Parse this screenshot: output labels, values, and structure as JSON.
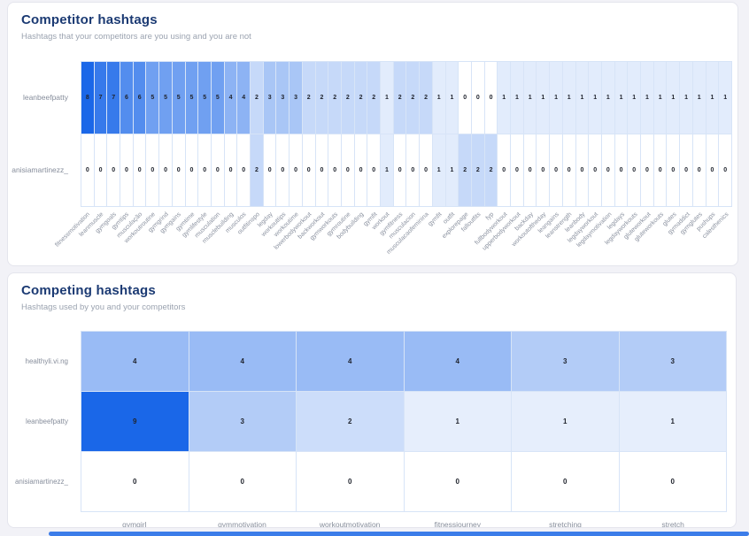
{
  "page": {
    "background_color": "#f2f2f7",
    "accent_color": "#1a67e8",
    "scrollbar_color": "#3c7de9"
  },
  "chart_data": [
    {
      "type": "heatmap",
      "title": "Competitor hashtags",
      "subtitle": "Hashtags that your competitors are you using and you are not",
      "categories": [
        "fitnessmotivation",
        "leanmuscle",
        "gymgoals",
        "gymtips",
        "musculação",
        "workoutroutine",
        "gymgrind",
        "gymgains",
        "gymtime",
        "gymlifestyle",
        "musculation",
        "musclebuilding",
        "musculos",
        "outfitinspo",
        "legday",
        "workouttips",
        "workoutime",
        "lowerbodyworkout",
        "backworkout",
        "gymworkouts",
        "gymroutine",
        "bodybuilding",
        "gymfit",
        "workout",
        "gymfitness",
        "musculacion",
        "musculacaofeminina",
        "gymfit",
        "outfit",
        "explorepage",
        "falloutfits",
        "fyp",
        "fullbodyworkout",
        "upperbodyworkout",
        "backday",
        "workoutoftheday",
        "leangains",
        "leanstrength",
        "leanbody",
        "legdayworkout",
        "legdaymotivation",
        "legdays",
        "legdayworkouts",
        "gluteworkout",
        "gluteworkouts",
        "glutes",
        "gymaddict",
        "gymglutes",
        "pushups",
        "calesthenics"
      ],
      "series": [
        {
          "name": "leanbeefpatty",
          "values": [
            8,
            7,
            7,
            6,
            6,
            5,
            5,
            5,
            5,
            5,
            5,
            4,
            4,
            2,
            3,
            3,
            3,
            2,
            2,
            2,
            2,
            2,
            2,
            1,
            2,
            2,
            2,
            1,
            1,
            0,
            0,
            0,
            1,
            1,
            1,
            1,
            1,
            1,
            1,
            1,
            1,
            1,
            1,
            1,
            1,
            1,
            1,
            1,
            1,
            1
          ]
        },
        {
          "name": "anisiamartinezz_",
          "values": [
            0,
            0,
            0,
            0,
            0,
            0,
            0,
            0,
            0,
            0,
            0,
            0,
            0,
            2,
            0,
            0,
            0,
            0,
            0,
            0,
            0,
            0,
            0,
            1,
            0,
            0,
            0,
            1,
            1,
            2,
            2,
            2,
            0,
            0,
            0,
            0,
            0,
            0,
            0,
            0,
            0,
            0,
            0,
            0,
            0,
            0,
            0,
            0,
            0,
            0
          ]
        }
      ],
      "value_range": [
        0,
        8
      ],
      "colors": {
        "min": "#ffffff",
        "max": "#1a67e8"
      },
      "x_label_rotation": -45,
      "cell_values_shown": true,
      "grid": true,
      "legend": false
    },
    {
      "type": "heatmap",
      "title": "Competing hashtags",
      "subtitle": "Hashtags used by you and your competitors",
      "categories": [
        "gymgirl",
        "gymmotivation",
        "workoutmotivation",
        "fitnessjourney",
        "stretching",
        "stretch"
      ],
      "series": [
        {
          "name": "healthyli.vi.ng",
          "values": [
            4,
            4,
            4,
            4,
            3,
            3
          ]
        },
        {
          "name": "leanbeefpatty",
          "values": [
            9,
            3,
            2,
            1,
            1,
            1
          ]
        },
        {
          "name": "anisiamartinezz_",
          "values": [
            0,
            0,
            0,
            0,
            0,
            0
          ]
        }
      ],
      "value_range": [
        0,
        9
      ],
      "colors": {
        "min": "#ffffff",
        "max": "#1a67e8"
      },
      "x_label_rotation": 0,
      "cell_values_shown": true,
      "grid": true,
      "legend": false
    }
  ]
}
